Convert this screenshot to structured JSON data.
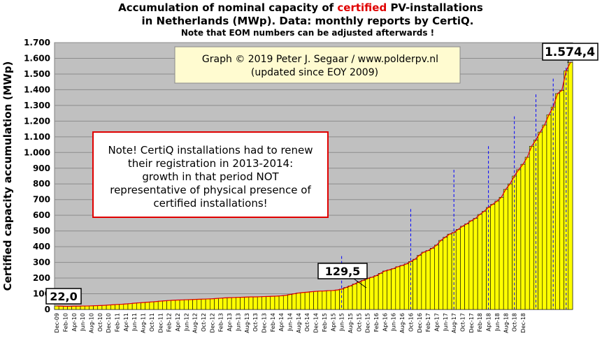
{
  "chart_data": {
    "type": "bar",
    "title_line1_pre": "Accumulation  of nominal  capacity of ",
    "title_line1_red": "certified",
    "title_line1_post": " PV-installations",
    "title_line2": "in Netherlands (MWp). Data: monthly  reports by CertiQ.",
    "subtitle": "Note that EOM numbers can be adjusted afterwards  !",
    "ylabel": "Certified capacity accumulation  (MWp)",
    "ylim": [
      0,
      1700
    ],
    "y_ticks": [
      0,
      100,
      200,
      300,
      400,
      500,
      600,
      700,
      800,
      900,
      1000,
      1100,
      1200,
      1300,
      1400,
      1500,
      1600,
      1700
    ],
    "y_tick_labels": [
      "0",
      "100",
      "200",
      "300",
      "400",
      "500",
      "600",
      "700",
      "800",
      "900",
      "1.000",
      "1.100",
      "1.200",
      "1.300",
      "1.400",
      "1.500",
      "1.600",
      "1.700"
    ],
    "x_tick_labels": [
      "Dec-09",
      "Feb-10",
      "Apr-10",
      "Jun-10",
      "Aug-10",
      "Oct-10",
      "Dec-10",
      "Feb-11",
      "Apr-11",
      "Jun-11",
      "Aug-11",
      "Oct-11",
      "Dec-11",
      "Feb-12",
      "Apr-12",
      "Jun-12",
      "Aug-12",
      "Oct-12",
      "Dec-12",
      "Feb-13",
      "Apr-13",
      "Jun-13",
      "Aug-13",
      "Oct-13",
      "Dec-13",
      "Feb-14",
      "Apr-14",
      "Jun-14",
      "Aug-14",
      "Oct-14",
      "Dec-14",
      "Feb-15",
      "Apr-15",
      "Jun-15",
      "Aug-15",
      "Oct-15",
      "Dec-15",
      "Feb-16",
      "Apr-16",
      "Jun-16",
      "Aug-16",
      "Oct-16",
      "Dec-16",
      "Feb-17",
      "Apr-17",
      "Jun-17",
      "Aug-17",
      "Oct-17",
      "Dec-17",
      "Feb-18",
      "Apr-18",
      "Jun-18",
      "Aug-18",
      "Oct-18",
      "Dec-18"
    ],
    "values": [
      22.0,
      21,
      20,
      20,
      21,
      21,
      22,
      22,
      23,
      24,
      25,
      26,
      28,
      30,
      32,
      33,
      35,
      37,
      40,
      42,
      44,
      46,
      48,
      50,
      53,
      55,
      57,
      59,
      60,
      61,
      62,
      63,
      64,
      65,
      66,
      67,
      68,
      70,
      72,
      74,
      75,
      76,
      77,
      78,
      79,
      80,
      80,
      81,
      82,
      83,
      84,
      85,
      87,
      90,
      95,
      100,
      105,
      108,
      110,
      113,
      115,
      117,
      118,
      120,
      121,
      124,
      129.5,
      140,
      150,
      162,
      175,
      185,
      197,
      205,
      215,
      230,
      245,
      252,
      260,
      272,
      280,
      290,
      305,
      320,
      345,
      365,
      375,
      390,
      410,
      440,
      460,
      480,
      490,
      510,
      530,
      545,
      565,
      580,
      605,
      625,
      650,
      670,
      690,
      715,
      765,
      800,
      850,
      890,
      925,
      970,
      1040,
      1080,
      1130,
      1175,
      1240,
      1290,
      1375,
      1395,
      1520,
      1574.4
    ],
    "annotations": {
      "first_value": "22,0",
      "mid_value": "129,5",
      "last_value": "1.574,4",
      "credit_line1": "Graph © 2019 Peter J. Segaar / www.polderpv.nl",
      "credit_line2": "(updated since EOY 2009)",
      "note_lines": [
        "Note! CertiQ installations had to renew",
        "their registration in 2013-2014:",
        "growth in that period NOT",
        "representative of physical presence of",
        "certified installations!"
      ]
    },
    "dashed_marker_months": [
      66,
      82,
      92,
      100,
      106,
      111,
      115,
      118
    ],
    "dashed_marker_tops": [
      340,
      640,
      890,
      1040,
      1230,
      1370,
      1470,
      1540
    ],
    "colors": {
      "bar_fill": "#ffff00",
      "bar_stroke": "#000000",
      "plot_background": "#c0c0c0",
      "trend_line": "#e00000",
      "marker_line": "#0000ff",
      "note_border": "#e00000",
      "credit_box": "#fffbd0"
    }
  }
}
